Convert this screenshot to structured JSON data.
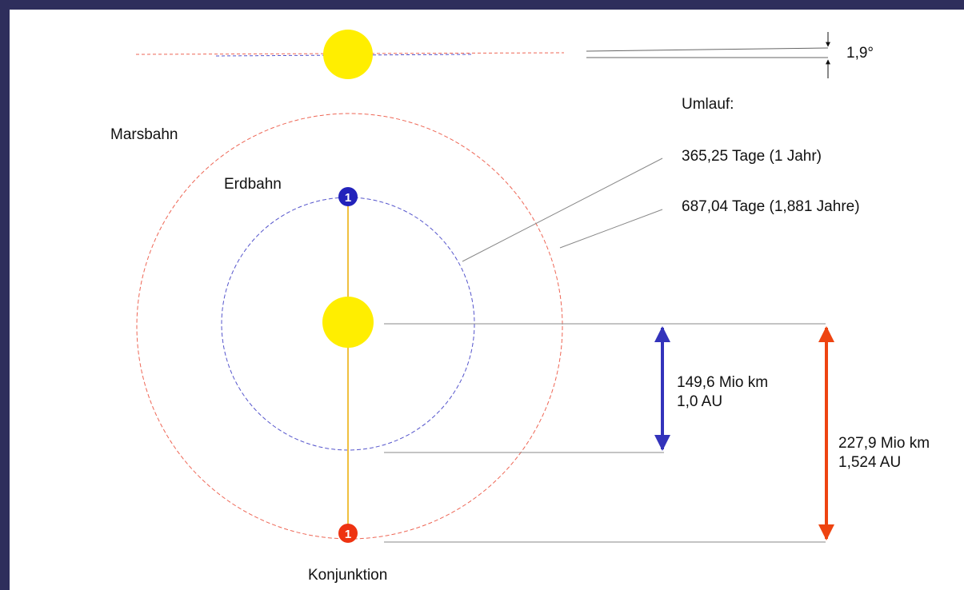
{
  "inclination": {
    "label": "1,9°"
  },
  "orbits": {
    "heading": "Umlauf:",
    "mars": {
      "name": "Marsbahn",
      "period": "687,04 Tage (1,881 Jahre)",
      "marker": "1",
      "distance_km": "227,9 Mio km",
      "distance_au": "1,524 AU"
    },
    "earth": {
      "name": "Erdbahn",
      "period": "365,25 Tage (1 Jahr)",
      "marker": "1",
      "distance_km": "149,6 Mio km",
      "distance_au": "1,0 AU"
    }
  },
  "event": {
    "label": "Konjunktion"
  }
}
